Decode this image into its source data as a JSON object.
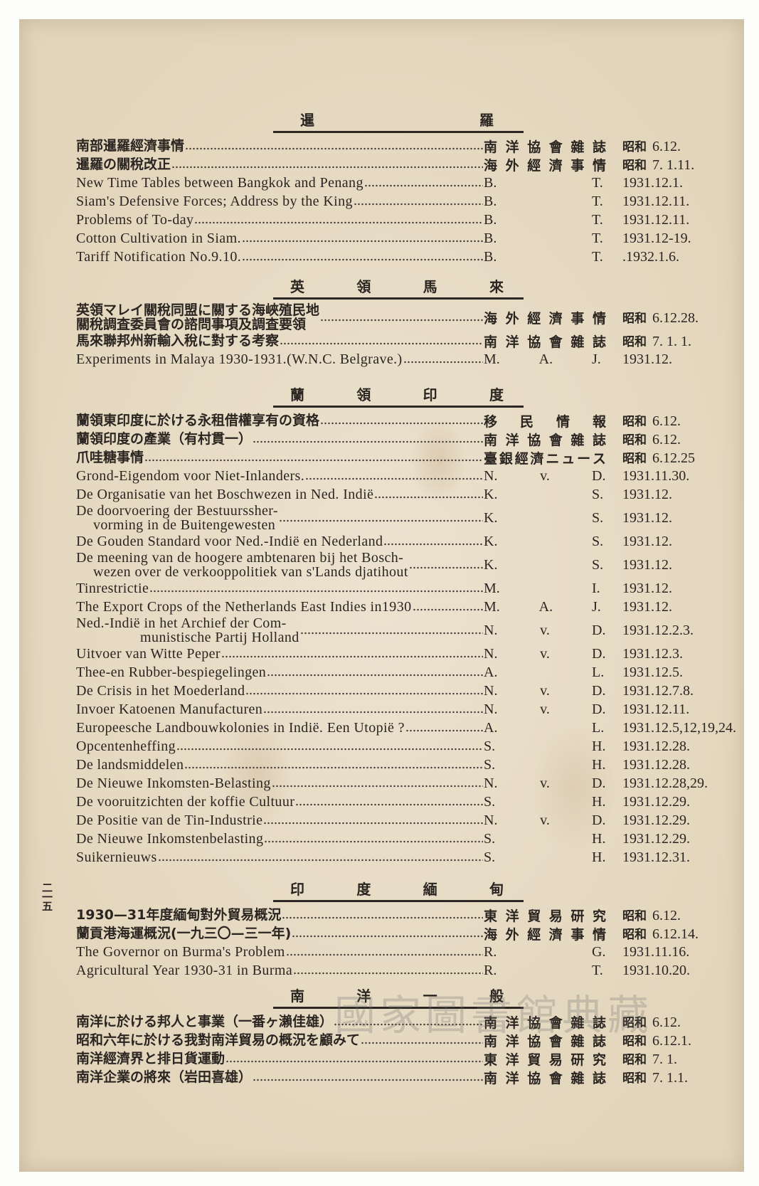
{
  "page_number": "二一五",
  "watermark": "國家圖書館典藏",
  "colors": {
    "paper": "#e8dcc4",
    "ink": "#2b2521"
  },
  "sections": [
    {
      "heading": [
        "暹",
        "羅"
      ],
      "entries": [
        {
          "title": [
            "南部暹羅經濟事情"
          ],
          "source": "南洋協會雜誌",
          "era": "昭和",
          "date": "6.12."
        },
        {
          "title": [
            "暹羅の關稅改正"
          ],
          "source": "海外經濟事情",
          "era": "昭和",
          "date": "7. 1.11."
        },
        {
          "title": [
            "New Time Tables between Bangkok and Penang"
          ],
          "source": [
            "B.",
            "",
            "T."
          ],
          "date": "1931.12.1."
        },
        {
          "title": [
            "Siam's Defensive Forces; Address by the King"
          ],
          "source": [
            "B.",
            "",
            "T."
          ],
          "date": "1931.12.11."
        },
        {
          "title": [
            "Problems of To-day"
          ],
          "source": [
            "B.",
            "",
            "T."
          ],
          "date": "1931.12.11."
        },
        {
          "title": [
            "Cotton Cultivation in Siam."
          ],
          "source": [
            "B.",
            "",
            "T."
          ],
          "date": "1931.12-19."
        },
        {
          "title": [
            "Tariff Notification No.9.10."
          ],
          "source": [
            "B.",
            "",
            "T."
          ],
          "date": ".1932.1.6."
        }
      ]
    },
    {
      "heading": [
        "英",
        "領",
        "馬",
        "來"
      ],
      "entries": [
        {
          "title": [
            "英領マレイ關稅同盟に關する海峽殖民地",
            "關稅調査委員會の諮問事項及調査要領"
          ],
          "source": "海外經濟事情",
          "era": "昭和",
          "date": "6.12.28."
        },
        {
          "title": [
            "馬來聯邦州新輸入稅に對する考察"
          ],
          "source": "南洋協會雜誌",
          "era": "昭和",
          "date": "7. 1. 1."
        },
        {
          "title": [
            "Experiments in Malaya 1930-1931.(W.N.C. Belgrave.)"
          ],
          "source": [
            "M.",
            "A.",
            "J."
          ],
          "date": "1931.12."
        }
      ]
    },
    {
      "heading": [
        "蘭",
        "領",
        "印",
        "度"
      ],
      "entries": [
        {
          "title": [
            "蘭領東印度に於ける永租借權享有の資格"
          ],
          "source": "移民情報",
          "era": "昭和",
          "date": "6.12."
        },
        {
          "title": [
            "蘭領印度の產業（有村貫一）"
          ],
          "source": "南洋協會雜誌",
          "era": "昭和",
          "date": "6.12."
        },
        {
          "title": [
            "爪哇糖事情"
          ],
          "source": "臺銀經濟ニュース",
          "era": "昭和",
          "date": "6.12.25"
        },
        {
          "title": [
            "Grond-Eigendom voor Niet-Inlanders."
          ],
          "source": [
            "N.",
            "v.",
            "D."
          ],
          "date": "1931.11.30."
        },
        {
          "title": [
            "De Organisatie van het Boschwezen in Ned. Indië"
          ],
          "source": [
            "K.",
            "",
            "S."
          ],
          "date": "1931.12."
        },
        {
          "title": [
            "De doorvoering der Bestuurssher-",
            "vorming in de Buitengewesten"
          ],
          "source": [
            "K.",
            "",
            "S."
          ],
          "date": "1931.12."
        },
        {
          "title": [
            "De Gouden Standard voor Ned.-Indië en Nederland"
          ],
          "source": [
            "K.",
            "",
            "S."
          ],
          "date": "1931.12."
        },
        {
          "title": [
            "De meening van de hoogere ambtenaren bij het Bosch-",
            "wezen over de verkooppolitiek van s'Lands djatihout"
          ],
          "source": [
            "K.",
            "",
            "S."
          ],
          "date": "1931.12."
        },
        {
          "title": [
            "Tinrestrictie"
          ],
          "source": [
            "M.",
            "",
            "I."
          ],
          "date": "1931.12."
        },
        {
          "title": [
            "The Export Crops of the Netherlands East Indies in1930"
          ],
          "source": [
            "M.",
            "A.",
            "J."
          ],
          "date": "1931.12."
        },
        {
          "title": [
            "Ned.-Indië in het Archief der Com-",
            "munistische Partij Holland"
          ],
          "source": [
            "N.",
            "v.",
            "D."
          ],
          "date": "1931.12.2.3."
        },
        {
          "title": [
            "Uitvoer van Witte Peper"
          ],
          "source": [
            "N.",
            "v.",
            "D."
          ],
          "date": "1931.12.3."
        },
        {
          "title": [
            "Thee-en Rubber-bespiegelingen"
          ],
          "source": [
            "A.",
            "",
            "L."
          ],
          "date": "1931.12.5."
        },
        {
          "title": [
            "De Crisis in het Moederland"
          ],
          "source": [
            "N.",
            "v.",
            "D."
          ],
          "date": "1931.12.7.8."
        },
        {
          "title": [
            "Invoer Katoenen Manufacturen"
          ],
          "source": [
            "N.",
            "v.",
            "D."
          ],
          "date": "1931.12.11."
        },
        {
          "title": [
            "Europeesche Landbouwkolonies in Indië. Een Utopië ?"
          ],
          "source": [
            "A.",
            "",
            "L."
          ],
          "date": "1931.12.5,12,19,24."
        },
        {
          "title": [
            "Opcentenheffing"
          ],
          "source": [
            "S.",
            "",
            "H."
          ],
          "date": "1931.12.28."
        },
        {
          "title": [
            "De landsmiddelen"
          ],
          "source": [
            "S.",
            "",
            "H."
          ],
          "date": "1931.12.28."
        },
        {
          "title": [
            "De Nieuwe Inkomsten-Belasting"
          ],
          "source": [
            "N.",
            "v.",
            "D."
          ],
          "date": "1931.12.28,29."
        },
        {
          "title": [
            "De vooruitzichten der koffie Cultuur"
          ],
          "source": [
            "S.",
            "",
            "H."
          ],
          "date": "1931.12.29."
        },
        {
          "title": [
            "De Positie van de Tin-Industrie"
          ],
          "source": [
            "N.",
            "v.",
            "D."
          ],
          "date": "1931.12.29."
        },
        {
          "title": [
            "De Nieuwe Inkomstenbelasting"
          ],
          "source": [
            "S.",
            "",
            "H."
          ],
          "date": "1931.12.29."
        },
        {
          "title": [
            "Suikernieuws"
          ],
          "source": [
            "S.",
            "",
            "H."
          ],
          "date": "1931.12.31."
        }
      ]
    },
    {
      "heading": [
        "印",
        "度",
        "緬",
        "甸"
      ],
      "entries": [
        {
          "title": [
            "1930—31年度緬甸對外貿易概況"
          ],
          "source": "東洋貿易研究",
          "era": "昭和",
          "date": "6.12."
        },
        {
          "title": [
            "蘭貢港海運概況(一九三〇—三一年)"
          ],
          "source": "海外經濟事情",
          "era": "昭和",
          "date": "6.12.14."
        },
        {
          "title": [
            "The Governor on Burma's Problem"
          ],
          "source": [
            "R.",
            "",
            "G."
          ],
          "date": "1931.11.16."
        },
        {
          "title": [
            "Agricultural Year 1930-31 in Burma"
          ],
          "source": [
            "R.",
            "",
            "T."
          ],
          "date": "1931.10.20."
        }
      ]
    },
    {
      "heading": [
        "南",
        "洋",
        "一",
        "般"
      ],
      "entries": [
        {
          "title": [
            "南洋に於ける邦人と事業（一番ヶ瀨佳雄）"
          ],
          "source": "南洋協會雜誌",
          "era": "昭和",
          "date": "6.12."
        },
        {
          "title": [
            "昭和六年に於ける我對南洋貿易の概況を顧みて"
          ],
          "source": "南洋協會雜誌",
          "era": "昭和",
          "date": "6.12.1."
        },
        {
          "title": [
            "南洋經濟界と排日貨運動"
          ],
          "source": "東洋貿易研究",
          "era": "昭和",
          "date": "7. 1."
        },
        {
          "title": [
            "南洋企業の將來（岩田喜雄）"
          ],
          "source": "南洋協會雜誌",
          "era": "昭和",
          "date": "7. 1.1."
        }
      ]
    }
  ]
}
